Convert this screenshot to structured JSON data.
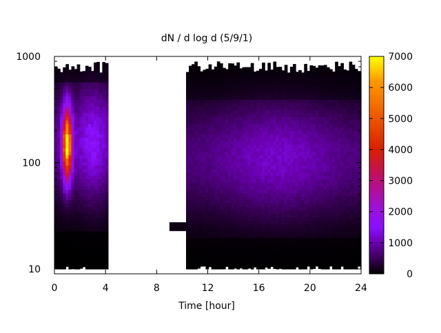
{
  "chart_data": {
    "type": "heatmap",
    "title": "dN / d log d (5/9/1)",
    "xlabel": "Time [hour]",
    "ylabel": "",
    "x_ticks": [
      "0",
      "4",
      "8",
      "12",
      "16",
      "20",
      "24"
    ],
    "x_tick_values": [
      0,
      4,
      8,
      12,
      16,
      20,
      24
    ],
    "xlim": [
      0,
      24
    ],
    "y_scale": "log",
    "y_ticks": [
      "10",
      "100",
      "1000"
    ],
    "y_tick_values": [
      10,
      100,
      1000
    ],
    "ylim": [
      9,
      1000
    ],
    "colorbar": {
      "ticks": [
        "0",
        "1000",
        "2000",
        "3000",
        "4000",
        "5000",
        "6000",
        "7000"
      ],
      "tick_values": [
        0,
        1000,
        2000,
        3000,
        4000,
        5000,
        6000,
        7000
      ],
      "range": [
        0,
        7000
      ],
      "palette": "black-purple-red-orange-yellow",
      "stops": [
        {
          "v": 0,
          "color": "#000000"
        },
        {
          "v": 500,
          "color": "#3a0058"
        },
        {
          "v": 1000,
          "color": "#6a00b0"
        },
        {
          "v": 1500,
          "color": "#8a10ff"
        },
        {
          "v": 2200,
          "color": "#a010d0"
        },
        {
          "v": 3200,
          "color": "#c01060"
        },
        {
          "v": 4000,
          "color": "#d82000"
        },
        {
          "v": 5200,
          "color": "#f06000"
        },
        {
          "v": 6200,
          "color": "#ff9800"
        },
        {
          "v": 7000,
          "color": "#ffff00"
        }
      ]
    },
    "regions": [
      {
        "t_start": 0,
        "t_end": 4.2,
        "d_min": 10,
        "d_max": 900,
        "peak_time": 1.0,
        "peak_diameter": 150,
        "peak_value": 6200
      },
      {
        "t_start": 10.3,
        "t_end": 24,
        "d_min": 10,
        "d_max": 900,
        "typical_value": 1000
      }
    ],
    "features": [
      {
        "t_start": 9.0,
        "t_end": 10.3,
        "d": 25,
        "value": 100
      }
    ],
    "grid": false
  }
}
